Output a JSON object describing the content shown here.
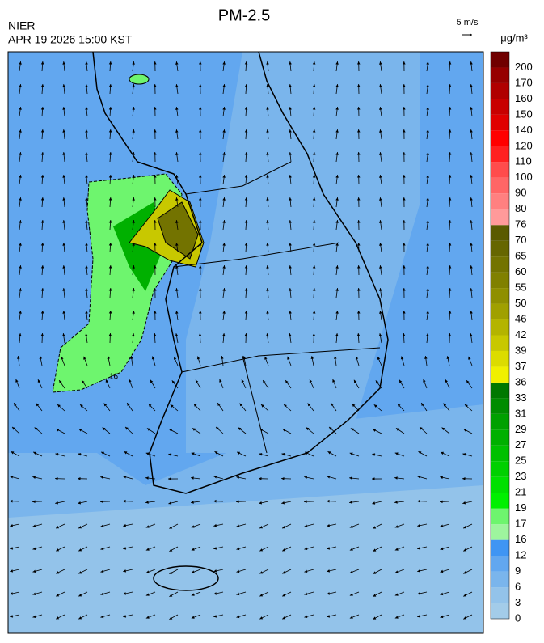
{
  "header": {
    "title": "PM-2.5",
    "agency": "NIER",
    "datetime": "APR 19 2026 15:00 KST",
    "wind_scale": "5 m/s",
    "unit": "μg/m³"
  },
  "map": {
    "contour_labels": [
      "16"
    ]
  },
  "colorbar": {
    "levels": [
      0,
      3,
      6,
      9,
      12,
      16,
      17,
      19,
      21,
      23,
      25,
      27,
      29,
      31,
      33,
      36,
      37,
      39,
      42,
      46,
      50,
      55,
      60,
      65,
      70,
      76,
      80,
      90,
      100,
      110,
      120,
      140,
      150,
      160,
      170,
      200
    ],
    "colors": [
      "#a3cce9",
      "#93c3ea",
      "#7ab5ec",
      "#62a7ef",
      "#3f95f3",
      "#9ef59e",
      "#6ef56e",
      "#00f000",
      "#00e000",
      "#00d000",
      "#00c000",
      "#00b000",
      "#00a000",
      "#008c00",
      "#007800",
      "#f0f000",
      "#dcdc00",
      "#c8c800",
      "#b4b400",
      "#a0a000",
      "#8f8f00",
      "#808000",
      "#737300",
      "#666600",
      "#5a5a00",
      "#ff9a9a",
      "#ff8080",
      "#ff6666",
      "#ff4c4c",
      "#ff2020",
      "#ff0000",
      "#e00000",
      "#c80000",
      "#b00000",
      "#960000",
      "#700000"
    ]
  }
}
